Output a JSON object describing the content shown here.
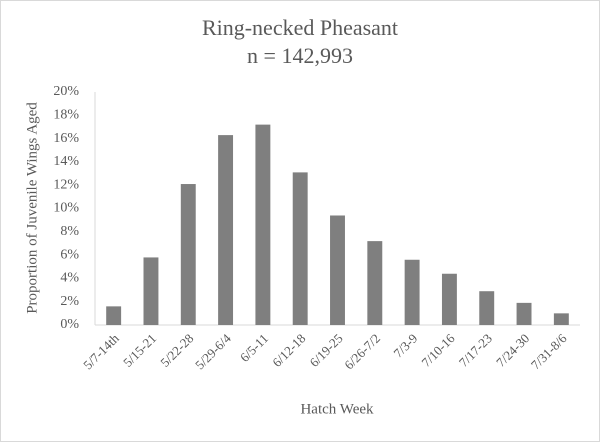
{
  "chart_data": {
    "type": "bar",
    "title": "Ring-necked Pheasant",
    "subtitle": "n = 142,993",
    "y_label": "Proportion of Juvenile Wings Aged",
    "x_label": "Hatch Week",
    "categories": [
      "5/7-14th",
      "5/15-21",
      "5/22-28",
      "5/29-6/4",
      "6/5-11",
      "6/12-18",
      "6/19-25",
      "6/26-7/2",
      "7/3-9",
      "7/10-16",
      "7/17-23",
      "7/24-30",
      "7/31-8/6"
    ],
    "values": [
      1.6,
      5.8,
      12.1,
      16.3,
      17.2,
      13.1,
      9.4,
      7.2,
      5.6,
      4.4,
      2.9,
      1.9,
      1.0
    ],
    "color": "#7f7f7f",
    "ylim": [
      0,
      20
    ],
    "yticks": [
      {
        "value": 0,
        "label": "0%"
      },
      {
        "value": 2,
        "label": "2%"
      },
      {
        "value": 4,
        "label": "4%"
      },
      {
        "value": 6,
        "label": "6%"
      },
      {
        "value": 8,
        "label": "8%"
      },
      {
        "value": 10,
        "label": "10%"
      },
      {
        "value": 12,
        "label": "12%"
      },
      {
        "value": 14,
        "label": "14%"
      },
      {
        "value": 16,
        "label": "16%"
      },
      {
        "value": 18,
        "label": "18%"
      },
      {
        "value": 20,
        "label": "20%"
      }
    ],
    "grid": false
  }
}
